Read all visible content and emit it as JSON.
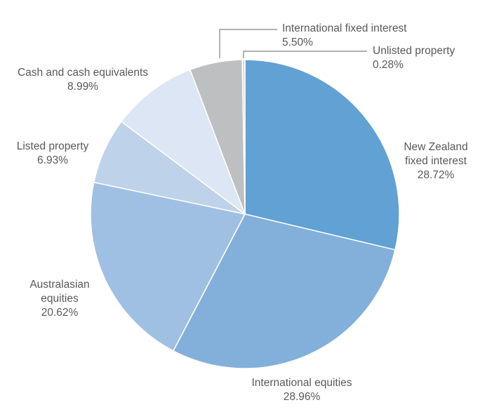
{
  "chart_data": {
    "type": "pie",
    "title": "",
    "start_angle": "12 o'clock, clockwise",
    "categories": [
      "New Zealand fixed interest",
      "International equities",
      "Australasian equities",
      "Listed property",
      "Cash and cash equivalents",
      "International fixed interest",
      "Unlisted property"
    ],
    "values": [
      28.72,
      28.96,
      20.62,
      6.93,
      8.99,
      5.5,
      0.28
    ],
    "colors": [
      "#62a1d3",
      "#83b0da",
      "#a0c0e3",
      "#bed2ea",
      "#dce6f4",
      "#bebfc1",
      "#dcdcde"
    ],
    "legend": "none (direct labels)"
  },
  "labels": {
    "nz_fixed": {
      "line1": "New Zealand",
      "line2": "fixed interest",
      "pct": "28.72%"
    },
    "intl_equities": {
      "line1": "International equities",
      "pct": "28.96%"
    },
    "aus_equities": {
      "line1": "Australasian",
      "line2": "equities",
      "pct": "20.62%"
    },
    "listed_property": {
      "line1": "Listed property",
      "pct": "6.93%"
    },
    "cash": {
      "line1": "Cash and cash equivalents",
      "pct": "8.99%"
    },
    "intl_fixed": {
      "line1": "International fixed interest",
      "pct": "5.50%"
    },
    "unlisted_property": {
      "line1": "Unlisted property",
      "pct": "0.28%"
    }
  }
}
